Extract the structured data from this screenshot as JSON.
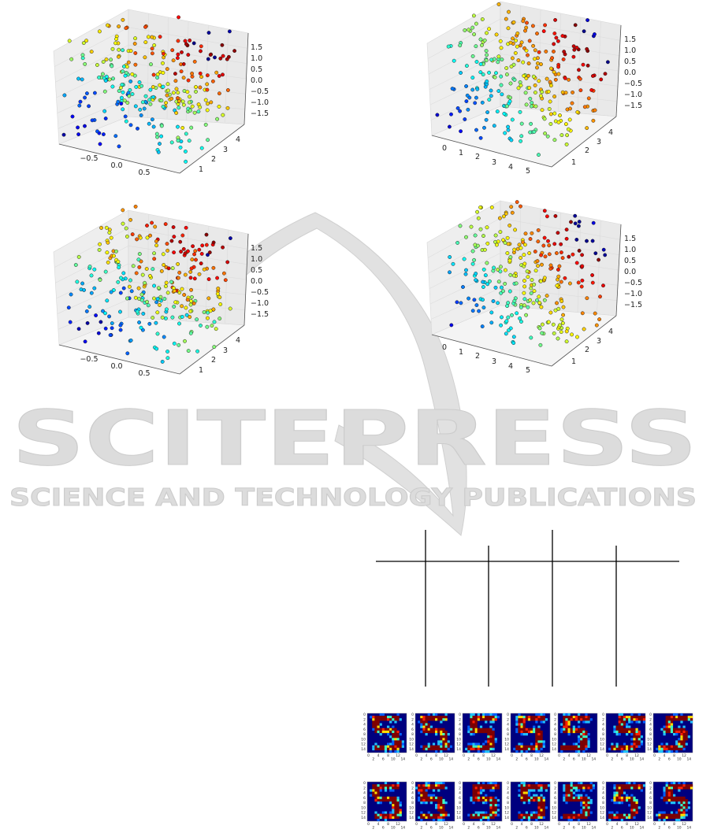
{
  "chart_data": [
    {
      "type": "scatter3d",
      "panel": "top-left",
      "colormap": "jet",
      "x_ticks": [
        "−0.5",
        "0.0",
        "0.5"
      ],
      "y_ticks": [
        "1",
        "2",
        "3",
        "4"
      ],
      "z_ticks": [
        "1.5",
        "1.0",
        "0.5",
        "0.0",
        "−0.5",
        "−1.0",
        "−1.5"
      ],
      "grid": true
    },
    {
      "type": "scatter3d",
      "panel": "top-right",
      "colormap": "jet",
      "x_ticks": [
        "0",
        "1",
        "2",
        "3",
        "4",
        "5"
      ],
      "y_ticks": [
        "1",
        "2",
        "3",
        "4"
      ],
      "z_ticks": [
        "1.5",
        "1.0",
        "0.5",
        "0.0",
        "−0.5",
        "−1.0",
        "−1.5"
      ],
      "grid": true
    },
    {
      "type": "scatter3d",
      "panel": "bottom-left",
      "colormap": "jet",
      "x_ticks": [
        "−0.5",
        "0.0",
        "0.5"
      ],
      "y_ticks": [
        "1",
        "2",
        "3",
        "4"
      ],
      "z_ticks": [
        "1.5",
        "1.0",
        "0.5",
        "0.0",
        "−0.5",
        "−1.0",
        "−1.5"
      ],
      "grid": true
    },
    {
      "type": "scatter3d",
      "panel": "bottom-right",
      "colormap": "jet",
      "x_ticks": [
        "0",
        "1",
        "2",
        "3",
        "4",
        "5"
      ],
      "y_ticks": [
        "1",
        "2",
        "3",
        "4"
      ],
      "z_ticks": [
        "1.5",
        "1.0",
        "0.5",
        "0.0",
        "−0.5",
        "−1.0",
        "−1.5"
      ],
      "grid": true
    }
  ],
  "digit_images": {
    "colormap": "jet",
    "rows": 2,
    "per_row": 7,
    "axis_ticks": [
      "0",
      "2",
      "4",
      "6",
      "8",
      "10",
      "12",
      "14"
    ]
  },
  "watermark": {
    "brand": "SCITEPRESS",
    "tagline": "SCIENCE AND TECHNOLOGY PUBLICATIONS"
  },
  "colors": {
    "watermark": "#d6d6d6",
    "digit_background": "#00007f",
    "pane": "#f2f2f2"
  }
}
